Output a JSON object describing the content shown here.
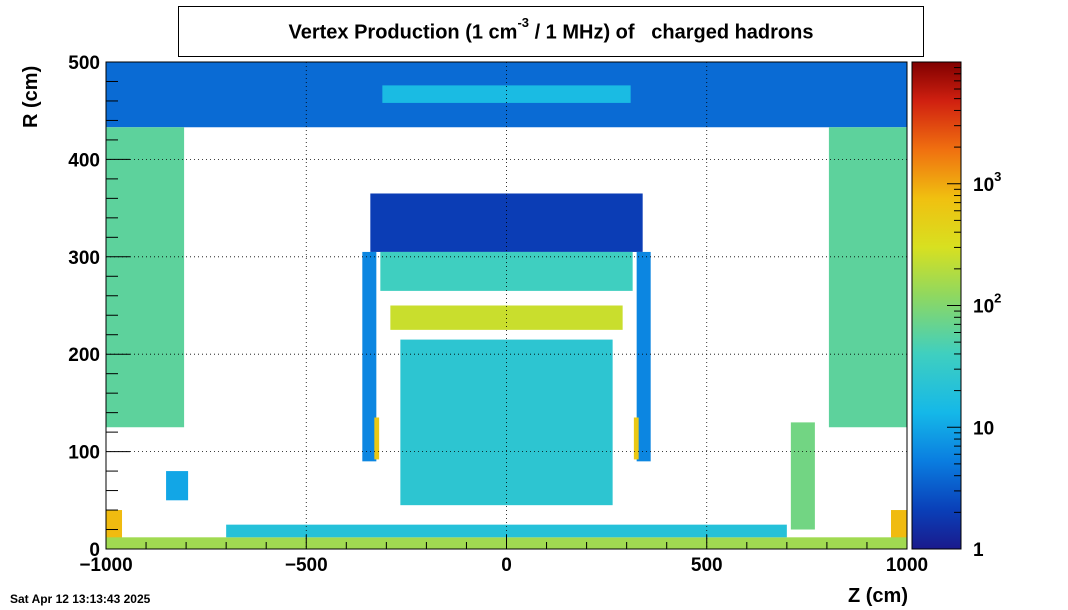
{
  "chart_data": {
    "type": "heatmap",
    "title_main": "Vertex Production (1 cm",
    "title_sup": "-3",
    "title_rest": " / 1 MHz) of   charged hadrons",
    "xlabel": "Z (cm)",
    "ylabel": "R (cm)",
    "xlim": [
      -1000,
      1000
    ],
    "ylim": [
      0,
      500
    ],
    "xticks": [
      -1000,
      -500,
      0,
      500,
      1000
    ],
    "xtick_labels": [
      "−1000",
      "−500",
      "0",
      "500",
      "1000"
    ],
    "yticks": [
      0,
      100,
      200,
      300,
      400,
      500
    ],
    "ytick_labels": [
      "0",
      "100",
      "200",
      "300",
      "400",
      "500"
    ],
    "grid": true,
    "colorbar": {
      "scale": "log",
      "range": [
        1,
        10000
      ],
      "tick_values": [
        1,
        10,
        100,
        1000
      ],
      "tick_labels": [
        {
          "base": "1",
          "exp": ""
        },
        {
          "base": "10",
          "exp": ""
        },
        {
          "base": "10",
          "exp": "2"
        },
        {
          "base": "10",
          "exp": "3"
        }
      ]
    },
    "regions": [
      {
        "name": "outer-barrel-top",
        "z": [
          -1000,
          1000
        ],
        "r": [
          433,
          500
        ],
        "value": 4
      },
      {
        "name": "top-bar",
        "z": [
          -310,
          310
        ],
        "r": [
          458,
          476
        ],
        "value": 15
      },
      {
        "name": "endcap-left",
        "z": [
          -1000,
          -805
        ],
        "r": [
          125,
          433
        ],
        "value": 60
      },
      {
        "name": "endcap-right",
        "z": [
          805,
          1000
        ],
        "r": [
          125,
          433
        ],
        "value": 60
      },
      {
        "name": "upper-cryostat",
        "z": [
          -340,
          340
        ],
        "r": [
          305,
          365
        ],
        "value": 2
      },
      {
        "name": "calorimeter-band",
        "z": [
          -315,
          315
        ],
        "r": [
          265,
          305
        ],
        "value": 40
      },
      {
        "name": "trapezoid-band",
        "z": [
          -290,
          290
        ],
        "r": [
          225,
          250
        ],
        "value": 250
      },
      {
        "name": "inner-frame",
        "z": [
          -265,
          265
        ],
        "r": [
          45,
          215
        ],
        "value": 25
      },
      {
        "name": "left-column",
        "z": [
          -360,
          -325
        ],
        "r": [
          90,
          305
        ],
        "value": 6
      },
      {
        "name": "right-column",
        "z": [
          325,
          360
        ],
        "r": [
          90,
          305
        ],
        "value": 6
      },
      {
        "name": "left-hot-strip",
        "z": [
          -330,
          -318
        ],
        "r": [
          92,
          135
        ],
        "value": 600
      },
      {
        "name": "right-hot-strip",
        "z": [
          318,
          330
        ],
        "r": [
          92,
          135
        ],
        "value": 600
      },
      {
        "name": "small-block-left",
        "z": [
          -850,
          -795
        ],
        "r": [
          50,
          80
        ],
        "value": 10
      },
      {
        "name": "forward-column-right",
        "z": [
          710,
          770
        ],
        "r": [
          20,
          130
        ],
        "value": 80
      },
      {
        "name": "beamline-left",
        "z": [
          -1000,
          -960
        ],
        "r": [
          10,
          40
        ],
        "value": 800
      },
      {
        "name": "beamline-right",
        "z": [
          960,
          1000
        ],
        "r": [
          10,
          40
        ],
        "value": 800
      },
      {
        "name": "beamline",
        "z": [
          -1000,
          1000
        ],
        "r": [
          0,
          12
        ],
        "value": 150
      },
      {
        "name": "beampipe-support",
        "z": [
          -700,
          700
        ],
        "r": [
          12,
          25
        ],
        "value": 20
      }
    ]
  },
  "timestamp": "Sat Apr 12 13:13:43 2025"
}
